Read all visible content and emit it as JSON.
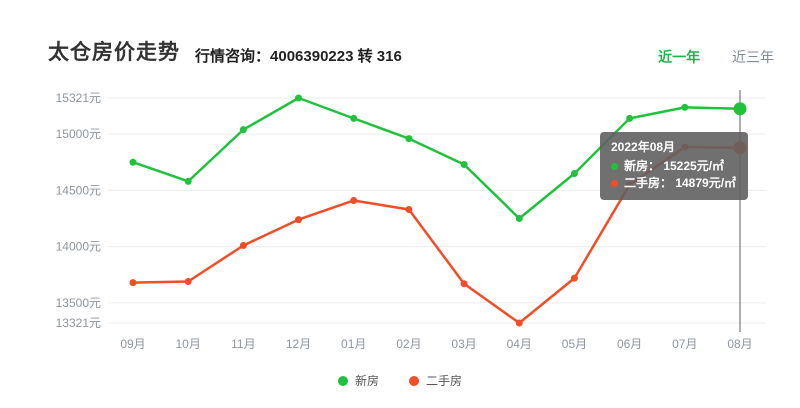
{
  "header": {
    "title": "太仓房价走势",
    "consult_label": "行情咨询：",
    "consult_phone": "4006390223 转 316",
    "tabs": [
      {
        "label": "近一年",
        "active": true
      },
      {
        "label": "近三年",
        "active": false
      }
    ]
  },
  "chart_data": {
    "type": "line",
    "title": "太仓房价走势",
    "categories": [
      "09月",
      "10月",
      "11月",
      "12月",
      "01月",
      "02月",
      "03月",
      "04月",
      "05月",
      "06月",
      "07月",
      "08月"
    ],
    "series": [
      {
        "name": "新房",
        "color": "#1fc23d",
        "values": [
          14750,
          14580,
          15040,
          15321,
          15140,
          14960,
          14730,
          14250,
          14650,
          15140,
          15238,
          15225
        ]
      },
      {
        "name": "二手房",
        "color": "#f14d26",
        "values": [
          13680,
          13690,
          14010,
          14240,
          14410,
          14330,
          13670,
          13321,
          13720,
          14550,
          14885,
          14879
        ]
      }
    ],
    "y_ticks": [
      {
        "label": "15321元",
        "value": 15321
      },
      {
        "label": "15000元",
        "value": 15000
      },
      {
        "label": "14500元",
        "value": 14500
      },
      {
        "label": "14000元",
        "value": 14000
      },
      {
        "label": "13500元",
        "value": 13500
      },
      {
        "label": "13321元",
        "value": 13321
      }
    ],
    "ylim": [
      13321,
      15321
    ],
    "xlabel": "",
    "ylabel": "",
    "unit": "元/㎡",
    "grid": true,
    "legend_position": "bottom",
    "highlight_category_index": 11
  },
  "tooltip": {
    "title": "2022年08月",
    "rows": [
      {
        "series": "新房",
        "text": "新房：  15225元/㎡"
      },
      {
        "series": "二手房",
        "text": "二手房：  14879元/㎡"
      }
    ]
  },
  "legend": {
    "items": [
      {
        "label": "新房"
      },
      {
        "label": "二手房"
      }
    ]
  },
  "colors": {
    "accent_green": "#1fc23d",
    "accent_red": "#f14d26",
    "tab_active": "#21b44a",
    "axis_text": "#8e969e",
    "grid_line": "#ececec",
    "pointer_line": "#5d5d5d"
  }
}
